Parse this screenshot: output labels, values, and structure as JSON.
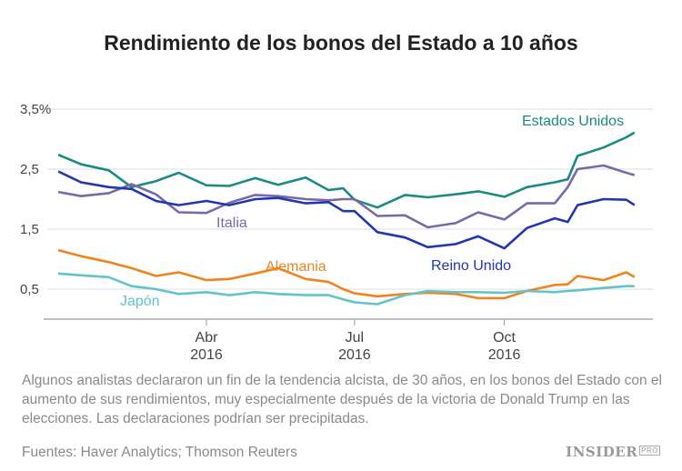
{
  "chart_data": {
    "type": "line",
    "title": "Rendimiento de los bonos del Estado a 10 años",
    "xlabel": "",
    "ylabel": "",
    "ylim": [
      0,
      3.5
    ],
    "yticks": [
      {
        "value": 3.5,
        "label": "3,5%"
      },
      {
        "value": 2.5,
        "label": "2,5"
      },
      {
        "value": 1.5,
        "label": "1,5"
      },
      {
        "value": 0.5,
        "label": "0,5"
      }
    ],
    "xticks": [
      {
        "date": "2016-04-01",
        "label": "Abr",
        "sublabel": "2016"
      },
      {
        "date": "2016-07-01",
        "label": "Jul",
        "sublabel": "2016"
      },
      {
        "date": "2016-10-01",
        "label": "Oct",
        "sublabel": "2016"
      }
    ],
    "xlim": [
      "2015-12-28",
      "2016-12-31"
    ],
    "grid": true,
    "x": [
      "2016-01-01",
      "2016-01-15",
      "2016-02-01",
      "2016-02-15",
      "2016-03-01",
      "2016-03-15",
      "2016-04-01",
      "2016-04-15",
      "2016-05-01",
      "2016-05-15",
      "2016-06-01",
      "2016-06-15",
      "2016-06-24",
      "2016-07-01",
      "2016-07-15",
      "2016-08-01",
      "2016-08-15",
      "2016-09-01",
      "2016-09-15",
      "2016-10-01",
      "2016-10-15",
      "2016-11-01",
      "2016-11-09",
      "2016-11-15",
      "2016-12-01",
      "2016-12-15",
      "2016-12-20"
    ],
    "series": [
      {
        "name": "Estados Unidos",
        "color": "#1a8a84",
        "values": [
          2.74,
          2.58,
          2.48,
          2.2,
          2.3,
          2.44,
          2.23,
          2.22,
          2.35,
          2.24,
          2.36,
          2.15,
          2.18,
          1.99,
          1.86,
          2.07,
          2.03,
          2.08,
          2.13,
          2.04,
          2.2,
          2.28,
          2.33,
          2.72,
          2.86,
          3.03,
          3.11
        ]
      },
      {
        "name": "Italia",
        "color": "#7a68a8",
        "values": [
          2.12,
          2.05,
          2.1,
          2.25,
          2.08,
          1.78,
          1.77,
          1.94,
          2.07,
          2.05,
          2.0,
          1.98,
          2.0,
          2.0,
          1.72,
          1.73,
          1.53,
          1.6,
          1.78,
          1.66,
          1.93,
          1.93,
          2.2,
          2.5,
          2.56,
          2.44,
          2.4
        ]
      },
      {
        "name": "Reino Unido",
        "color": "#2236b0",
        "values": [
          2.46,
          2.28,
          2.2,
          2.17,
          1.97,
          1.9,
          1.97,
          1.9,
          2.0,
          2.02,
          1.93,
          1.95,
          1.8,
          1.8,
          1.45,
          1.36,
          1.2,
          1.25,
          1.38,
          1.18,
          1.52,
          1.68,
          1.62,
          1.9,
          2.0,
          1.99,
          1.9
        ]
      },
      {
        "name": "Alemania",
        "color": "#ee8420",
        "values": [
          1.15,
          1.05,
          0.95,
          0.85,
          0.72,
          0.78,
          0.65,
          0.67,
          0.76,
          0.85,
          0.67,
          0.62,
          0.5,
          0.43,
          0.38,
          0.42,
          0.44,
          0.42,
          0.35,
          0.35,
          0.47,
          0.57,
          0.58,
          0.72,
          0.65,
          0.78,
          0.7
        ]
      },
      {
        "name": "Japón",
        "color": "#62c3c8",
        "values": [
          0.76,
          0.73,
          0.7,
          0.55,
          0.5,
          0.42,
          0.45,
          0.4,
          0.45,
          0.42,
          0.4,
          0.4,
          0.33,
          0.28,
          0.25,
          0.4,
          0.47,
          0.45,
          0.45,
          0.44,
          0.47,
          0.45,
          0.47,
          0.48,
          0.52,
          0.55,
          0.55
        ]
      }
    ]
  },
  "description": "Algunos analistas declararon un fin de la tendencia alcista, de 30 años, en los bonos del Estado con el aumento de sus rendimientos, muy especialmente después de la victoria de Donald Trump en las elecciones. Las declaraciones podrían ser precipitadas.",
  "source": "Fuentes: Haver Analytics; Thomson Reuters",
  "logo": {
    "text": "INSIDER",
    "badge": "PRO"
  }
}
